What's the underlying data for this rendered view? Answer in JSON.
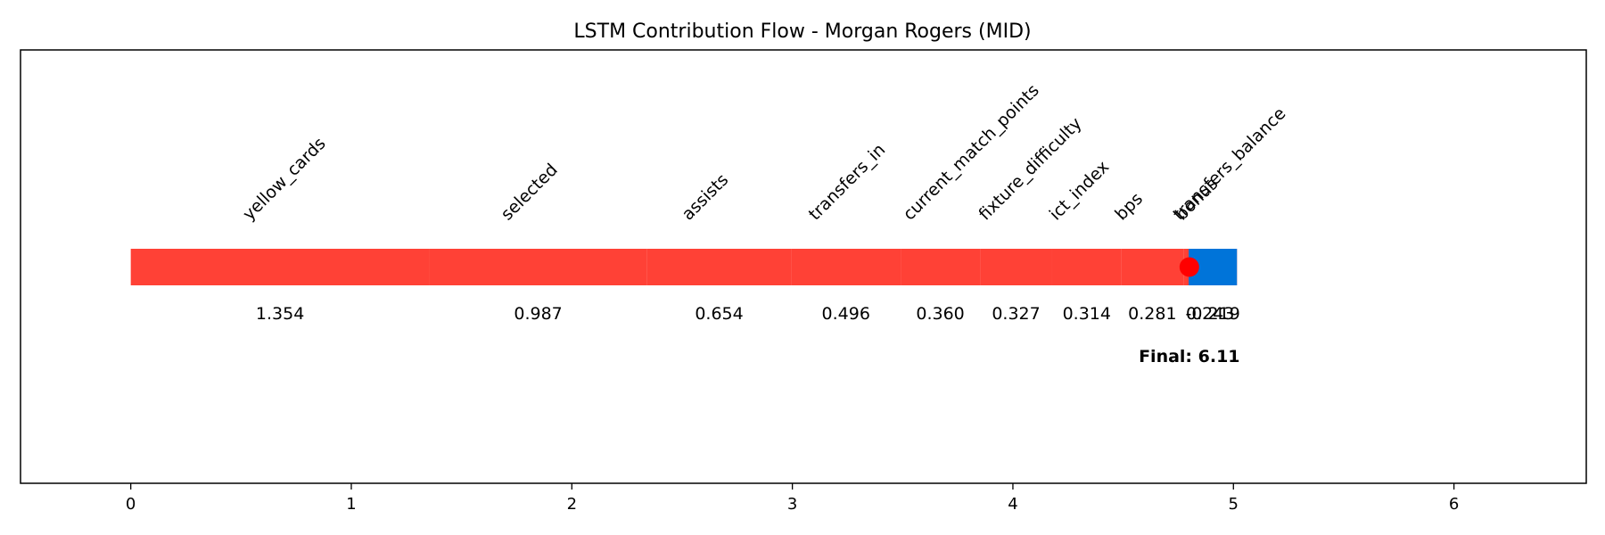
{
  "chart_data": {
    "type": "bar",
    "orientation": "horizontal-cumulative",
    "title": "LSTM Contribution Flow - Morgan Rogers (MID)",
    "xlabel": "",
    "ylabel": "",
    "xlim": [
      -0.5,
      6.6
    ],
    "xticks": [
      0,
      1,
      2,
      3,
      4,
      5,
      6
    ],
    "xtick_labels": [
      "0",
      "1",
      "2",
      "3",
      "4",
      "5",
      "6"
    ],
    "grid": false,
    "legend": "none",
    "colors": {
      "positive": "#ff4136",
      "negative": "#0074d9",
      "marker": "#ff0000"
    },
    "segments": [
      {
        "feature": "yellow_cards",
        "value": 1.354,
        "label": "1.354"
      },
      {
        "feature": "selected",
        "value": 0.987,
        "label": "0.987"
      },
      {
        "feature": "assists",
        "value": 0.654,
        "label": "0.654"
      },
      {
        "feature": "transfers_in",
        "value": 0.496,
        "label": "0.496"
      },
      {
        "feature": "current_match_points",
        "value": 0.36,
        "label": "0.360"
      },
      {
        "feature": "fixture_difficulty",
        "value": 0.327,
        "label": "0.327"
      },
      {
        "feature": "ict_index",
        "value": 0.314,
        "label": "0.314"
      },
      {
        "feature": "bps",
        "value": 0.281,
        "label": "0.281"
      },
      {
        "feature": "transfers_balance",
        "value": 0.243,
        "label": "0.243"
      },
      {
        "feature": "bonus",
        "value": -0.219,
        "label": "-0.219"
      }
    ],
    "marker_value": 4.8,
    "final_label": "Final: 6.11"
  }
}
